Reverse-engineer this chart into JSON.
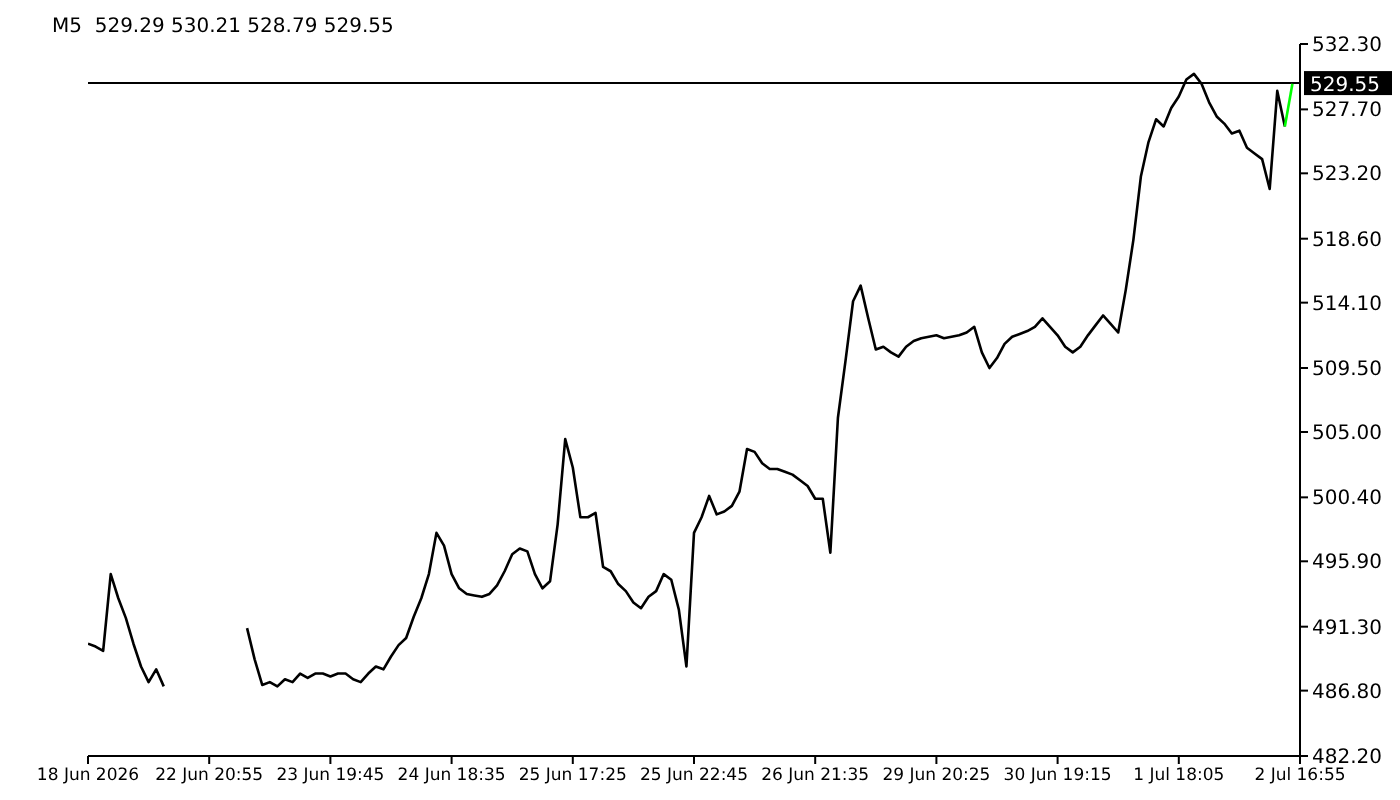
{
  "chart_data": {
    "type": "line",
    "title": "M5  529.29 530.21 528.79 529.55",
    "categories": [
      "18 Jun 2026",
      null,
      null,
      null,
      null,
      null,
      null,
      null,
      null,
      null,
      null,
      null,
      null,
      null,
      null,
      null,
      "22 Jun 20:55",
      null,
      null,
      null,
      null,
      null,
      null,
      null,
      null,
      null,
      null,
      null,
      null,
      null,
      null,
      null,
      "23 Jun 19:45",
      null,
      null,
      null,
      null,
      null,
      null,
      null,
      null,
      null,
      null,
      null,
      null,
      null,
      null,
      null,
      "24 Jun 18:35",
      null,
      null,
      null,
      null,
      null,
      null,
      null,
      null,
      null,
      null,
      null,
      null,
      null,
      null,
      null,
      "25 Jun 17:25",
      null,
      null,
      null,
      null,
      null,
      null,
      null,
      null,
      null,
      null,
      null,
      null,
      null,
      null,
      null,
      "25 Jun 22:45",
      null,
      null,
      null,
      null,
      null,
      null,
      null,
      null,
      null,
      null,
      null,
      null,
      null,
      null,
      null,
      "26 Jun 21:35",
      null,
      null,
      null,
      null,
      null,
      null,
      null,
      null,
      null,
      null,
      null,
      null,
      null,
      null,
      null,
      "29 Jun 20:25",
      null,
      null,
      null,
      null,
      null,
      null,
      null,
      null,
      null,
      null,
      null,
      null,
      null,
      null,
      null,
      "30 Jun 19:15",
      null,
      null,
      null,
      null,
      null,
      null,
      null,
      null,
      null,
      null,
      null,
      null,
      null,
      null,
      null,
      "1 Jul 18:05",
      null,
      null,
      null,
      null,
      null,
      null,
      null,
      null,
      null,
      null,
      null,
      null,
      null,
      null,
      null,
      "2 Jul 16:55"
    ],
    "series": [
      {
        "color": "#000000",
        "values": [
          490.1,
          489.9,
          489.6,
          495.0,
          493.3,
          491.9,
          490.1,
          488.5,
          487.4,
          488.3,
          487.1,
          null,
          null,
          null,
          null,
          null,
          null,
          null,
          null,
          null,
          null,
          491.2,
          489.0,
          487.2,
          487.4,
          487.1,
          487.6,
          487.4,
          488.0,
          487.7,
          488.0,
          488.0,
          487.8,
          488.0,
          488.0,
          487.6,
          487.4,
          488.0,
          488.5,
          488.3,
          489.2,
          490.0,
          490.5,
          492.0,
          493.3,
          495.0,
          497.9,
          497.0,
          495.0,
          494.0,
          493.6,
          493.5,
          493.4,
          493.6,
          494.2,
          495.2,
          496.4,
          496.8,
          496.6,
          495.0,
          494.0,
          494.5,
          498.5,
          504.5,
          502.5,
          499.0,
          499.0,
          499.3,
          495.5,
          495.2,
          494.3,
          493.8,
          493.0,
          492.6,
          493.4,
          493.8,
          495.0,
          494.6,
          492.5,
          488.5,
          497.9,
          499.0,
          500.5,
          499.2,
          499.4,
          499.8,
          500.8,
          503.8,
          503.6,
          502.8,
          502.4,
          502.4,
          502.2,
          502.0,
          501.6,
          501.2,
          500.3,
          500.3,
          496.5,
          506.0,
          510.0,
          514.2,
          515.3,
          513.0,
          510.8,
          511.0,
          510.6,
          510.3,
          511.0,
          511.4,
          511.6,
          511.7,
          511.8,
          511.6,
          511.7,
          511.8,
          512.0,
          512.4,
          510.6,
          509.5,
          510.2,
          511.2,
          511.7,
          511.9,
          512.1,
          512.4,
          513.0,
          512.4,
          511.8,
          511.0,
          510.6,
          511.0,
          511.8,
          512.5,
          513.2,
          512.6,
          512.0,
          515.0,
          518.5,
          523.0,
          525.4,
          527.0,
          526.5,
          527.8,
          528.6,
          529.8,
          530.2,
          529.5,
          528.2,
          527.2,
          526.7,
          526.0,
          526.2,
          525.0,
          524.6,
          524.2,
          522.1,
          529.0,
          526.5,
          null,
          null
        ]
      },
      {
        "color": "#00ff00",
        "values": [
          null,
          null,
          null,
          null,
          null,
          null,
          null,
          null,
          null,
          null,
          null,
          null,
          null,
          null,
          null,
          null,
          null,
          null,
          null,
          null,
          null,
          null,
          null,
          null,
          null,
          null,
          null,
          null,
          null,
          null,
          null,
          null,
          null,
          null,
          null,
          null,
          null,
          null,
          null,
          null,
          null,
          null,
          null,
          null,
          null,
          null,
          null,
          null,
          null,
          null,
          null,
          null,
          null,
          null,
          null,
          null,
          null,
          null,
          null,
          null,
          null,
          null,
          null,
          null,
          null,
          null,
          null,
          null,
          null,
          null,
          null,
          null,
          null,
          null,
          null,
          null,
          null,
          null,
          null,
          null,
          null,
          null,
          null,
          null,
          null,
          null,
          null,
          null,
          null,
          null,
          null,
          null,
          null,
          null,
          null,
          null,
          null,
          null,
          null,
          null,
          null,
          null,
          null,
          null,
          null,
          null,
          null,
          null,
          null,
          null,
          null,
          null,
          null,
          null,
          null,
          null,
          null,
          null,
          null,
          null,
          null,
          null,
          null,
          null,
          null,
          null,
          null,
          null,
          null,
          null,
          null,
          null,
          null,
          null,
          null,
          null,
          null,
          null,
          null,
          null,
          null,
          null,
          null,
          null,
          null,
          null,
          null,
          null,
          null,
          null,
          null,
          null,
          null,
          null,
          null,
          null,
          null,
          null,
          526.5,
          529.5,
          null
        ]
      }
    ],
    "ylim": [
      482.2,
      532.3
    ],
    "yticks": [
      {
        "value": 532.3,
        "label": "532.30"
      },
      {
        "value": 527.7,
        "label": "527.70"
      },
      {
        "value": 523.2,
        "label": "523.20"
      },
      {
        "value": 518.6,
        "label": "518.60"
      },
      {
        "value": 514.1,
        "label": "514.10"
      },
      {
        "value": 509.5,
        "label": "509.50"
      },
      {
        "value": 505.0,
        "label": "505.00"
      },
      {
        "value": 500.4,
        "label": "500.40"
      },
      {
        "value": 495.9,
        "label": "495.90"
      },
      {
        "value": 491.3,
        "label": "491.30"
      },
      {
        "value": 486.8,
        "label": "486.80"
      },
      {
        "value": 482.2,
        "label": "482.20"
      }
    ],
    "ref_lines": [
      {
        "axis": "y",
        "value": 529.55,
        "label": "529.55",
        "color": "#000000"
      }
    ],
    "marker": "none",
    "line_style": "solid"
  }
}
